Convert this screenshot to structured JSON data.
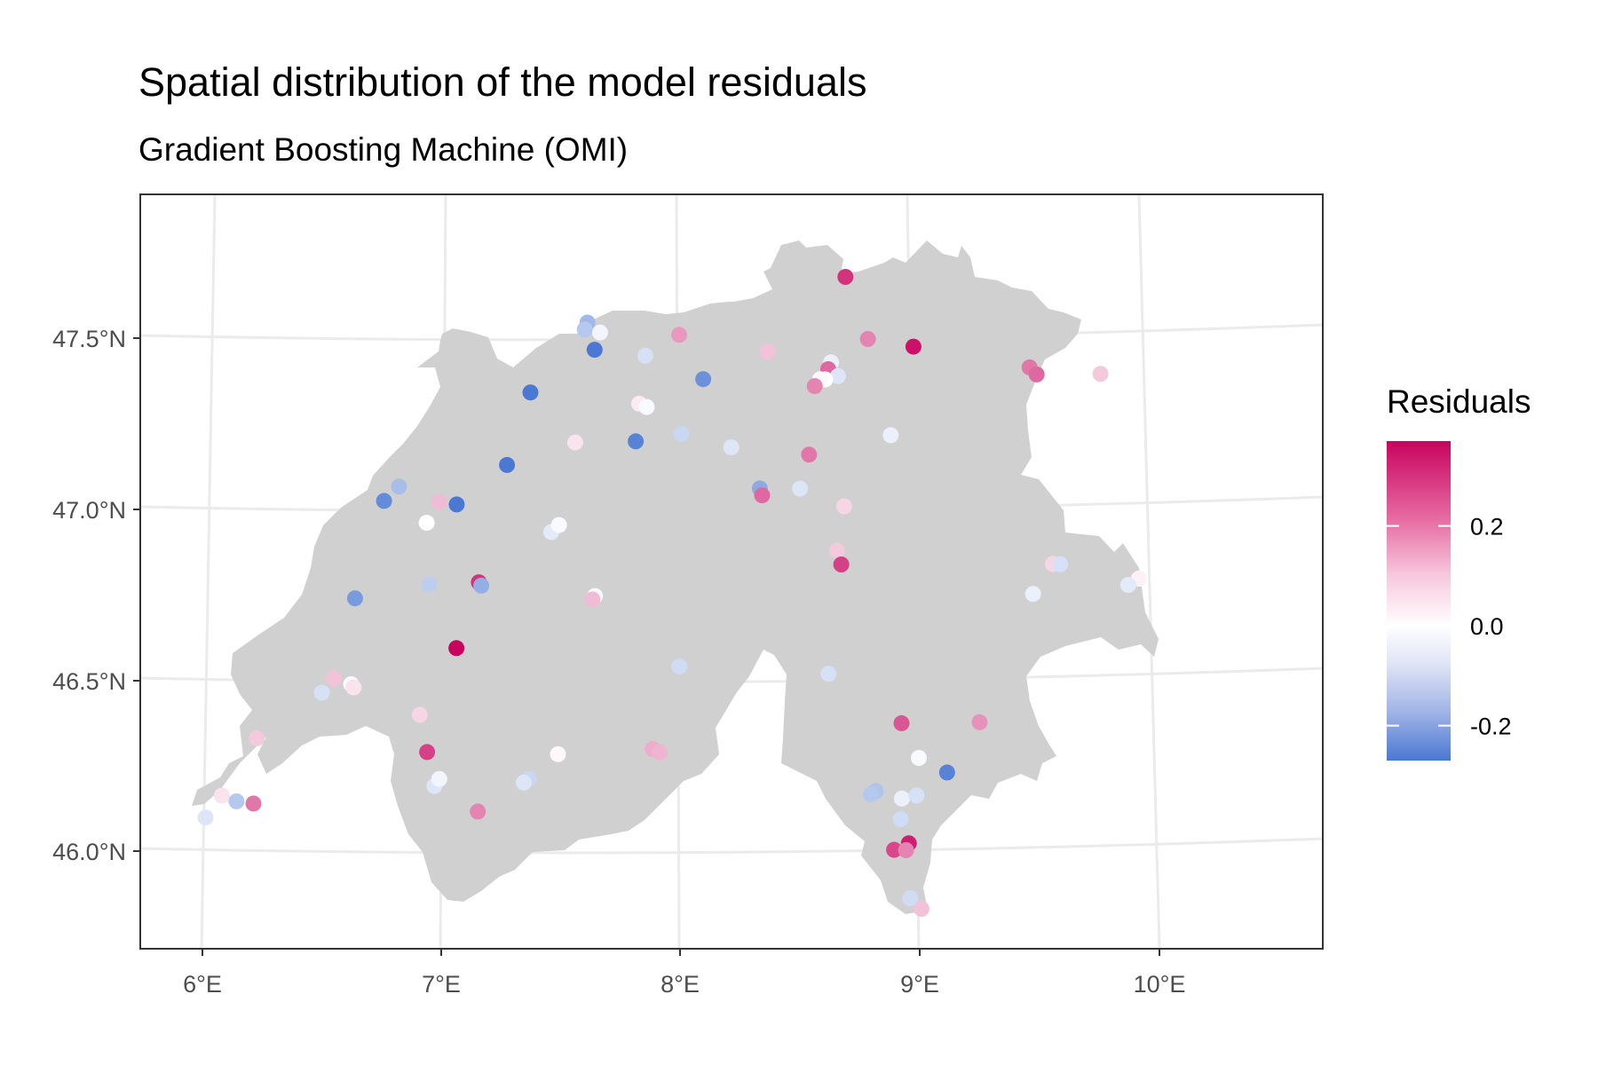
{
  "title": "Spatial distribution of the model residuals",
  "subtitle": "Gradient Boosting Machine (OMI)",
  "legend": {
    "title": "Residuals",
    "labels": [
      "0.2",
      "0.0",
      "-0.2"
    ],
    "values": [
      0.2,
      0.0,
      -0.2
    ],
    "range": [
      -0.27,
      0.37
    ],
    "colors": {
      "low": "#4a78d2",
      "mid": "#ffffff",
      "high": "#c8035f"
    }
  },
  "colors": {
    "land": "#d0d0d0",
    "grid": "#ebebeb",
    "frame": "#333333"
  },
  "chart_data": {
    "type": "scatter",
    "title": "Spatial distribution of the model residuals",
    "subtitle": "Gradient Boosting Machine (OMI)",
    "xlabel": "",
    "ylabel": "",
    "x_ticks": [
      "6°E",
      "7°E",
      "8°E",
      "9°E",
      "10°E"
    ],
    "y_ticks": [
      "46.0°N",
      "46.5°N",
      "47.0°N",
      "47.5°N"
    ],
    "xlim": [
      5.75,
      10.68
    ],
    "ylim": [
      45.72,
      47.92
    ],
    "grid": true,
    "legend_position": "right",
    "points": [
      {
        "lon": 8.57,
        "lat": 47.68,
        "residual": 0.3
      },
      {
        "lon": 8.85,
        "lat": 47.48,
        "residual": 0.35
      },
      {
        "lon": 8.67,
        "lat": 47.5,
        "residual": 0.18
      },
      {
        "lon": 7.93,
        "lat": 47.51,
        "residual": 0.15
      },
      {
        "lon": 7.57,
        "lat": 47.55,
        "residual": -0.14
      },
      {
        "lon": 7.56,
        "lat": 47.53,
        "residual": -0.11
      },
      {
        "lon": 7.62,
        "lat": 47.52,
        "residual": -0.02
      },
      {
        "lon": 7.6,
        "lat": 47.47,
        "residual": -0.27
      },
      {
        "lon": 7.8,
        "lat": 47.45,
        "residual": -0.06
      },
      {
        "lon": 8.28,
        "lat": 47.46,
        "residual": 0.09
      },
      {
        "lon": 8.53,
        "lat": 47.43,
        "residual": -0.03
      },
      {
        "lon": 8.52,
        "lat": 47.41,
        "residual": 0.22
      },
      {
        "lon": 8.56,
        "lat": 47.39,
        "residual": -0.05
      },
      {
        "lon": 8.51,
        "lat": 47.38,
        "residual": 0.0
      },
      {
        "lon": 8.49,
        "lat": 47.38,
        "residual": 0.01
      },
      {
        "lon": 8.47,
        "lat": 47.36,
        "residual": 0.18
      },
      {
        "lon": 9.31,
        "lat": 47.43,
        "residual": 0.2
      },
      {
        "lon": 9.34,
        "lat": 47.41,
        "residual": 0.22
      },
      {
        "lon": 9.59,
        "lat": 47.42,
        "residual": 0.08
      },
      {
        "lon": 7.35,
        "lat": 47.35,
        "residual": -0.27
      },
      {
        "lon": 8.03,
        "lat": 47.38,
        "residual": -0.22
      },
      {
        "lon": 7.78,
        "lat": 47.31,
        "residual": 0.03
      },
      {
        "lon": 7.81,
        "lat": 47.3,
        "residual": -0.01
      },
      {
        "lon": 8.78,
        "lat": 47.22,
        "residual": -0.03
      },
      {
        "lon": 7.95,
        "lat": 47.22,
        "residual": -0.08
      },
      {
        "lon": 7.77,
        "lat": 47.2,
        "residual": -0.25
      },
      {
        "lon": 7.53,
        "lat": 47.2,
        "residual": 0.04
      },
      {
        "lon": 8.15,
        "lat": 47.18,
        "residual": -0.05
      },
      {
        "lon": 8.46,
        "lat": 47.16,
        "residual": 0.2
      },
      {
        "lon": 7.26,
        "lat": 47.14,
        "residual": -0.27
      },
      {
        "lon": 6.83,
        "lat": 47.09,
        "residual": -0.13
      },
      {
        "lon": 6.77,
        "lat": 47.05,
        "residual": -0.23
      },
      {
        "lon": 8.27,
        "lat": 47.06,
        "residual": -0.17
      },
      {
        "lon": 8.28,
        "lat": 47.04,
        "residual": 0.22
      },
      {
        "lon": 8.43,
        "lat": 47.06,
        "residual": -0.05
      },
      {
        "lon": 6.99,
        "lat": 47.04,
        "residual": 0.1
      },
      {
        "lon": 7.06,
        "lat": 47.03,
        "residual": -0.27
      },
      {
        "lon": 8.61,
        "lat": 47.01,
        "residual": 0.06
      },
      {
        "lon": 6.94,
        "lat": 46.98,
        "residual": 0.0
      },
      {
        "lon": 7.44,
        "lat": 46.94,
        "residual": -0.04
      },
      {
        "lon": 7.47,
        "lat": 46.96,
        "residual": -0.01
      },
      {
        "lon": 8.59,
        "lat": 46.88,
        "residual": 0.08
      },
      {
        "lon": 8.61,
        "lat": 46.84,
        "residual": 0.28
      },
      {
        "lon": 9.46,
        "lat": 46.86,
        "residual": 0.06
      },
      {
        "lon": 9.49,
        "lat": 46.86,
        "residual": -0.06
      },
      {
        "lon": 9.81,
        "lat": 46.83,
        "residual": 0.02
      },
      {
        "lon": 9.77,
        "lat": 46.81,
        "residual": -0.04
      },
      {
        "lon": 9.39,
        "lat": 46.77,
        "residual": -0.03
      },
      {
        "lon": 7.15,
        "lat": 46.8,
        "residual": 0.3
      },
      {
        "lon": 7.16,
        "lat": 46.79,
        "residual": -0.16
      },
      {
        "lon": 6.95,
        "lat": 46.8,
        "residual": -0.1
      },
      {
        "lon": 6.65,
        "lat": 46.77,
        "residual": -0.2
      },
      {
        "lon": 7.62,
        "lat": 46.75,
        "residual": 0.01
      },
      {
        "lon": 7.61,
        "lat": 46.74,
        "residual": 0.1
      },
      {
        "lon": 7.06,
        "lat": 46.61,
        "residual": 0.37
      },
      {
        "lon": 7.97,
        "lat": 46.54,
        "residual": -0.07
      },
      {
        "lon": 8.58,
        "lat": 46.52,
        "residual": -0.06
      },
      {
        "lon": 6.56,
        "lat": 46.54,
        "residual": 0.09
      },
      {
        "lon": 6.63,
        "lat": 46.52,
        "residual": -0.01
      },
      {
        "lon": 6.64,
        "lat": 46.51,
        "residual": 0.04
      },
      {
        "lon": 6.51,
        "lat": 46.5,
        "residual": -0.06
      },
      {
        "lon": 6.91,
        "lat": 46.42,
        "residual": 0.06
      },
      {
        "lon": 6.24,
        "lat": 46.38,
        "residual": 0.08
      },
      {
        "lon": 8.89,
        "lat": 46.38,
        "residual": 0.25
      },
      {
        "lon": 9.21,
        "lat": 46.39,
        "residual": 0.16
      },
      {
        "lon": 6.94,
        "lat": 46.31,
        "residual": 0.28
      },
      {
        "lon": 7.48,
        "lat": 46.29,
        "residual": 0.01
      },
      {
        "lon": 7.87,
        "lat": 46.3,
        "residual": 0.12
      },
      {
        "lon": 7.9,
        "lat": 46.29,
        "residual": 0.11
      },
      {
        "lon": 8.97,
        "lat": 46.28,
        "residual": -0.01
      },
      {
        "lon": 9.09,
        "lat": 46.24,
        "residual": -0.25
      },
      {
        "lon": 6.09,
        "lat": 46.22,
        "residual": 0.04
      },
      {
        "lon": 6.97,
        "lat": 46.21,
        "residual": -0.05
      },
      {
        "lon": 6.99,
        "lat": 46.23,
        "residual": -0.02
      },
      {
        "lon": 7.36,
        "lat": 46.22,
        "residual": -0.08
      },
      {
        "lon": 7.34,
        "lat": 46.21,
        "residual": -0.05
      },
      {
        "lon": 6.15,
        "lat": 46.2,
        "residual": -0.11
      },
      {
        "lon": 6.22,
        "lat": 46.19,
        "residual": 0.2
      },
      {
        "lon": 6.02,
        "lat": 46.16,
        "residual": -0.05
      },
      {
        "lon": 8.8,
        "lat": 46.18,
        "residual": -0.12
      },
      {
        "lon": 8.78,
        "lat": 46.17,
        "residual": -0.11
      },
      {
        "lon": 8.91,
        "lat": 46.16,
        "residual": -0.03
      },
      {
        "lon": 8.97,
        "lat": 46.17,
        "residual": -0.06
      },
      {
        "lon": 7.15,
        "lat": 46.13,
        "residual": 0.18
      },
      {
        "lon": 8.91,
        "lat": 46.1,
        "residual": -0.07
      },
      {
        "lon": 8.89,
        "lat": 46.01,
        "residual": 0.27
      },
      {
        "lon": 8.95,
        "lat": 46.03,
        "residual": 0.33
      },
      {
        "lon": 8.94,
        "lat": 46.01,
        "residual": 0.18
      },
      {
        "lon": 8.97,
        "lat": 45.87,
        "residual": -0.07
      },
      {
        "lon": 9.02,
        "lat": 45.84,
        "residual": 0.09
      }
    ]
  }
}
